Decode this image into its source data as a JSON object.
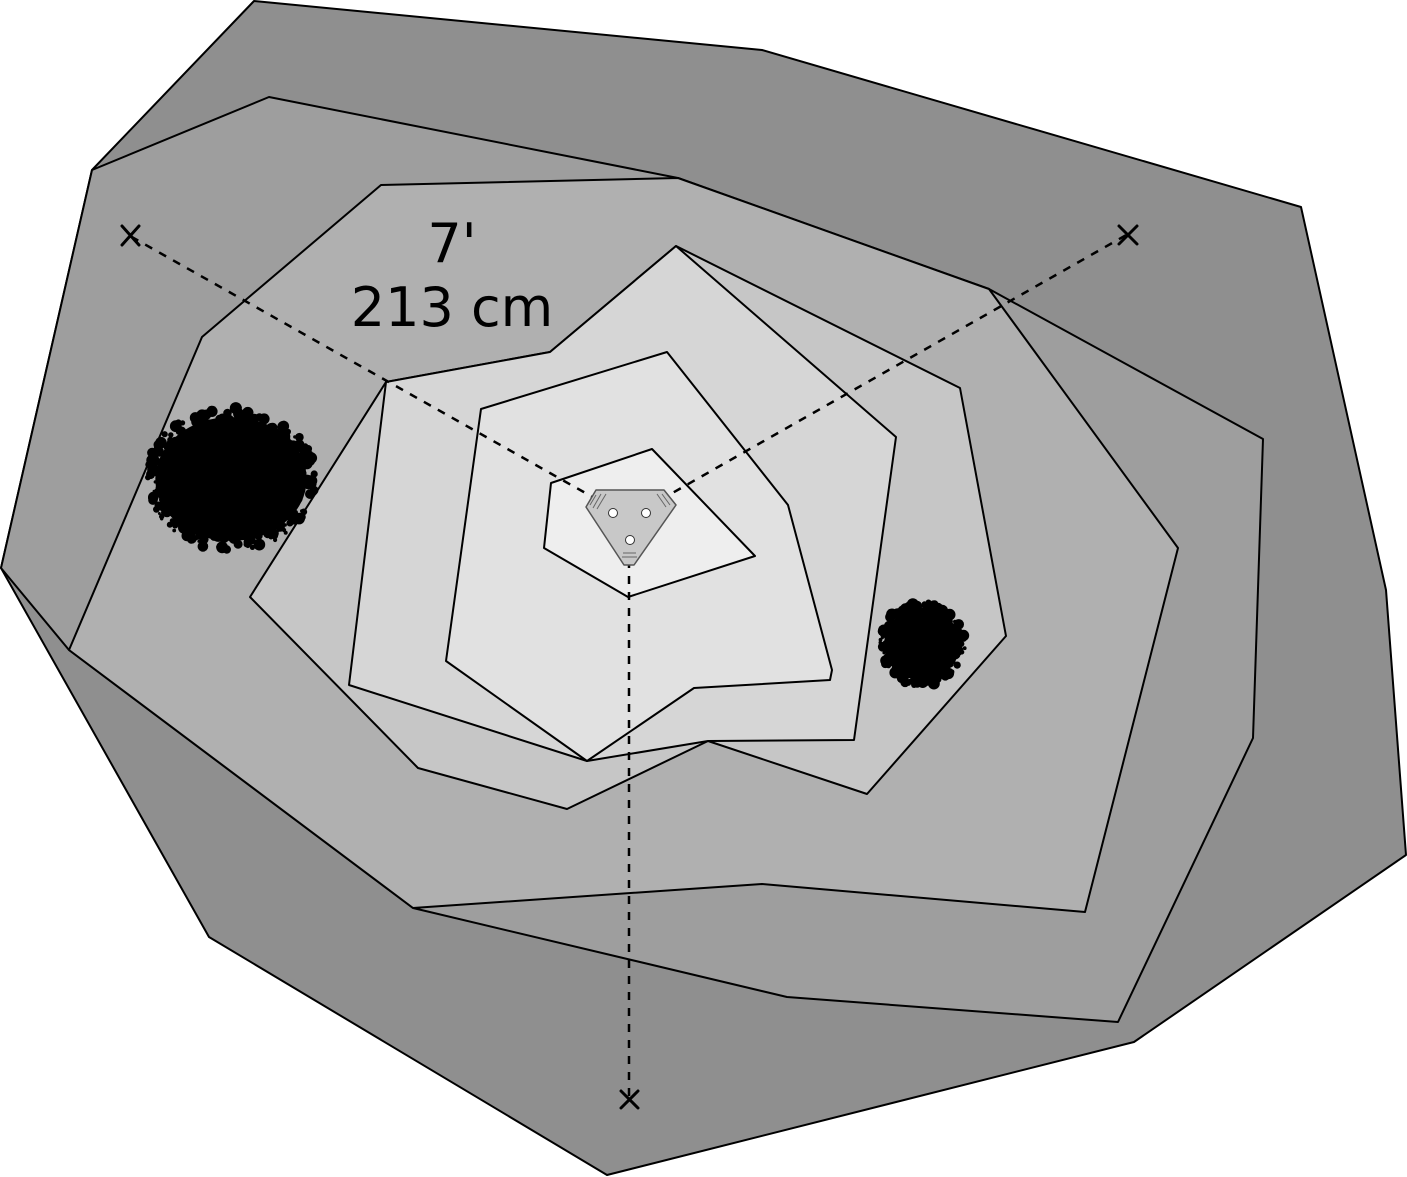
{
  "diagram": {
    "measurement": {
      "feet": "7'",
      "centimeters": "213 cm"
    },
    "colors": {
      "ring_outer": "#8f8f8f",
      "ring_2": "#9e9e9e",
      "ring_3": "#b0b0b0",
      "ring_4": "#c6c6c6",
      "ring_5": "#d6d6d6",
      "ring_6": "#e1e1e1",
      "ring_inner": "#eeeeee",
      "outline": "#000000",
      "device_fill": "#c8c8c8",
      "shrub": "#000000"
    },
    "icons": {
      "device": "triangular-device-icon",
      "stake": "x-marker-icon",
      "bush": "shrub-icon"
    }
  }
}
